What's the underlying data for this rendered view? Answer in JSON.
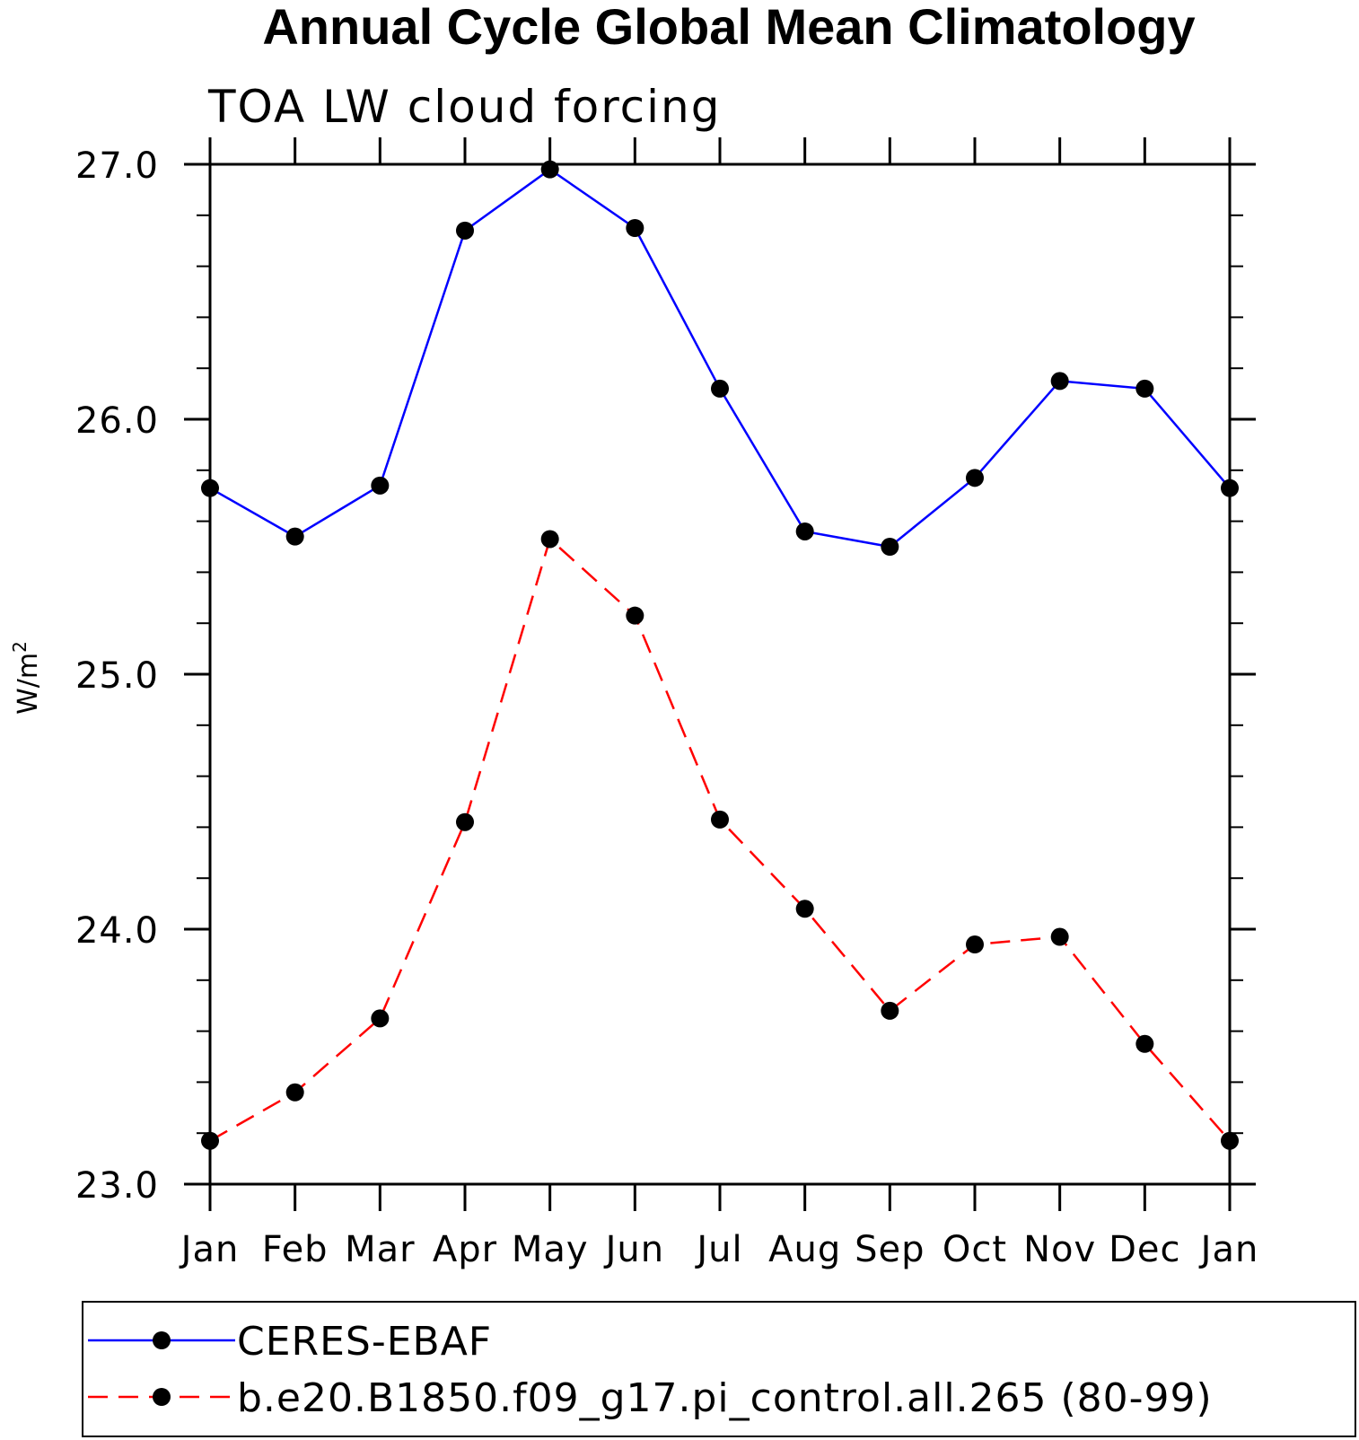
{
  "chart_data": {
    "type": "line",
    "title": "Annual Cycle Global Mean Climatology",
    "subtitle": "TOA LW cloud forcing",
    "ylabel": "W/m",
    "ylabel_superscript": "2",
    "categories": [
      "Jan",
      "Feb",
      "Mar",
      "Apr",
      "May",
      "Jun",
      "Jul",
      "Aug",
      "Sep",
      "Oct",
      "Nov",
      "Dec",
      "Jan"
    ],
    "ylim": [
      23.0,
      27.0
    ],
    "y_ticks": [
      "23.0",
      "24.0",
      "25.0",
      "26.0",
      "27.0"
    ],
    "grid": false,
    "legend_position": "bottom",
    "series": [
      {
        "name": "CERES-EBAF",
        "color": "#0000ff",
        "style": "solid",
        "values": [
          25.73,
          25.54,
          25.74,
          26.74,
          26.98,
          26.75,
          26.12,
          25.56,
          25.5,
          25.77,
          26.15,
          26.12,
          25.73
        ]
      },
      {
        "name": "b.e20.B1850.f09_g17.pi_control.all.265 (80-99)",
        "color": "#ff0000",
        "style": "dashed",
        "values": [
          23.17,
          23.36,
          23.65,
          24.42,
          25.53,
          25.23,
          24.43,
          24.08,
          23.68,
          23.94,
          23.97,
          23.55,
          23.17
        ]
      }
    ]
  }
}
